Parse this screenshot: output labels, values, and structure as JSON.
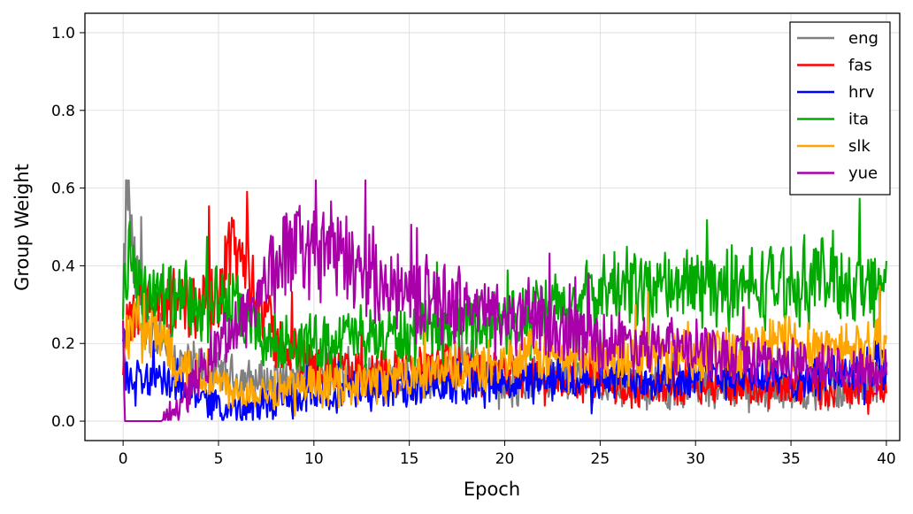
{
  "chart_data": {
    "type": "line",
    "title": "",
    "xlabel": "Epoch",
    "ylabel": "Group Weight",
    "xlim": [
      -2,
      40.7
    ],
    "ylim": [
      -0.05,
      1.05
    ],
    "xticks": [
      0,
      5,
      10,
      15,
      20,
      25,
      30,
      35,
      40
    ],
    "xtick_labels": [
      "0",
      "5",
      "10",
      "15",
      "20",
      "25",
      "30",
      "35",
      "40"
    ],
    "yticks": [
      0.0,
      0.2,
      0.4,
      0.6,
      0.8,
      1.0
    ],
    "ytick_labels": [
      "0.0",
      "0.2",
      "0.4",
      "0.6",
      "0.8",
      "1.0"
    ],
    "grid": true,
    "legend_position": "top-right",
    "series": [
      {
        "name": "eng",
        "color": "#808080",
        "x": [
          0,
          0.1,
          0.2,
          0.3,
          0.5,
          1,
          2,
          3,
          5,
          7,
          10,
          12,
          15,
          17,
          18,
          20,
          22,
          25,
          27,
          30,
          33,
          35,
          37,
          40
        ],
        "y": [
          0.25,
          0.45,
          0.61,
          0.6,
          0.4,
          0.3,
          0.2,
          0.15,
          0.12,
          0.1,
          0.12,
          0.12,
          0.1,
          0.12,
          0.16,
          0.08,
          0.12,
          0.1,
          0.09,
          0.08,
          0.09,
          0.07,
          0.08,
          0.1
        ]
      },
      {
        "name": "fas",
        "color": "#ff0000",
        "x": [
          0,
          0.5,
          1,
          2,
          3,
          4,
          5,
          5.5,
          6,
          6.5,
          7,
          8,
          10,
          13,
          15,
          17,
          20,
          23,
          25,
          27,
          30,
          33,
          35,
          37,
          40
        ],
        "y": [
          0.2,
          0.25,
          0.3,
          0.28,
          0.3,
          0.3,
          0.33,
          0.45,
          0.42,
          0.4,
          0.35,
          0.2,
          0.14,
          0.12,
          0.14,
          0.14,
          0.12,
          0.11,
          0.11,
          0.08,
          0.1,
          0.09,
          0.08,
          0.09,
          0.07
        ]
      },
      {
        "name": "hrv",
        "color": "#0000ff",
        "x": [
          0,
          0.3,
          1,
          2,
          3,
          4,
          5,
          6,
          8,
          10,
          12,
          15,
          18,
          20,
          22,
          25,
          28,
          30,
          32,
          35,
          37,
          40
        ],
        "y": [
          0.2,
          0.08,
          0.12,
          0.1,
          0.1,
          0.07,
          0.04,
          0.03,
          0.05,
          0.07,
          0.08,
          0.08,
          0.09,
          0.1,
          0.1,
          0.11,
          0.11,
          0.11,
          0.12,
          0.11,
          0.12,
          0.14
        ]
      },
      {
        "name": "ita",
        "color": "#00aa00",
        "x": [
          0,
          0.3,
          0.6,
          1,
          2,
          3,
          4,
          5,
          6,
          7,
          8,
          10,
          12,
          15,
          18,
          20,
          22,
          24,
          25,
          27,
          30,
          32,
          35,
          37,
          40
        ],
        "y": [
          0.3,
          0.45,
          0.4,
          0.35,
          0.32,
          0.3,
          0.28,
          0.32,
          0.28,
          0.22,
          0.2,
          0.2,
          0.22,
          0.22,
          0.25,
          0.26,
          0.28,
          0.3,
          0.33,
          0.35,
          0.35,
          0.34,
          0.36,
          0.37,
          0.34
        ]
      },
      {
        "name": "slk",
        "color": "#ffa500",
        "x": [
          0,
          0.5,
          1,
          2,
          3,
          4,
          5,
          6,
          8,
          10,
          13,
          15,
          18,
          20,
          22,
          25,
          27,
          30,
          33,
          35,
          37,
          40
        ],
        "y": [
          0.22,
          0.25,
          0.22,
          0.22,
          0.15,
          0.12,
          0.1,
          0.08,
          0.08,
          0.09,
          0.1,
          0.12,
          0.13,
          0.15,
          0.17,
          0.16,
          0.17,
          0.18,
          0.19,
          0.21,
          0.19,
          0.2
        ]
      },
      {
        "name": "yue",
        "color": "#aa00aa",
        "x": [
          0,
          0.1,
          0.2,
          1,
          1.5,
          2,
          2.5,
          3,
          4,
          5,
          6,
          7,
          8,
          9,
          10,
          11,
          12,
          13,
          15,
          18,
          20,
          22,
          25,
          28,
          30,
          33,
          35,
          37,
          40
        ],
        "y": [
          0.2,
          0.0,
          0.0,
          0.0,
          0.0,
          0.0,
          0.02,
          0.05,
          0.12,
          0.2,
          0.25,
          0.32,
          0.4,
          0.45,
          0.44,
          0.43,
          0.4,
          0.38,
          0.33,
          0.3,
          0.27,
          0.24,
          0.21,
          0.2,
          0.18,
          0.16,
          0.15,
          0.14,
          0.12
        ]
      }
    ]
  }
}
